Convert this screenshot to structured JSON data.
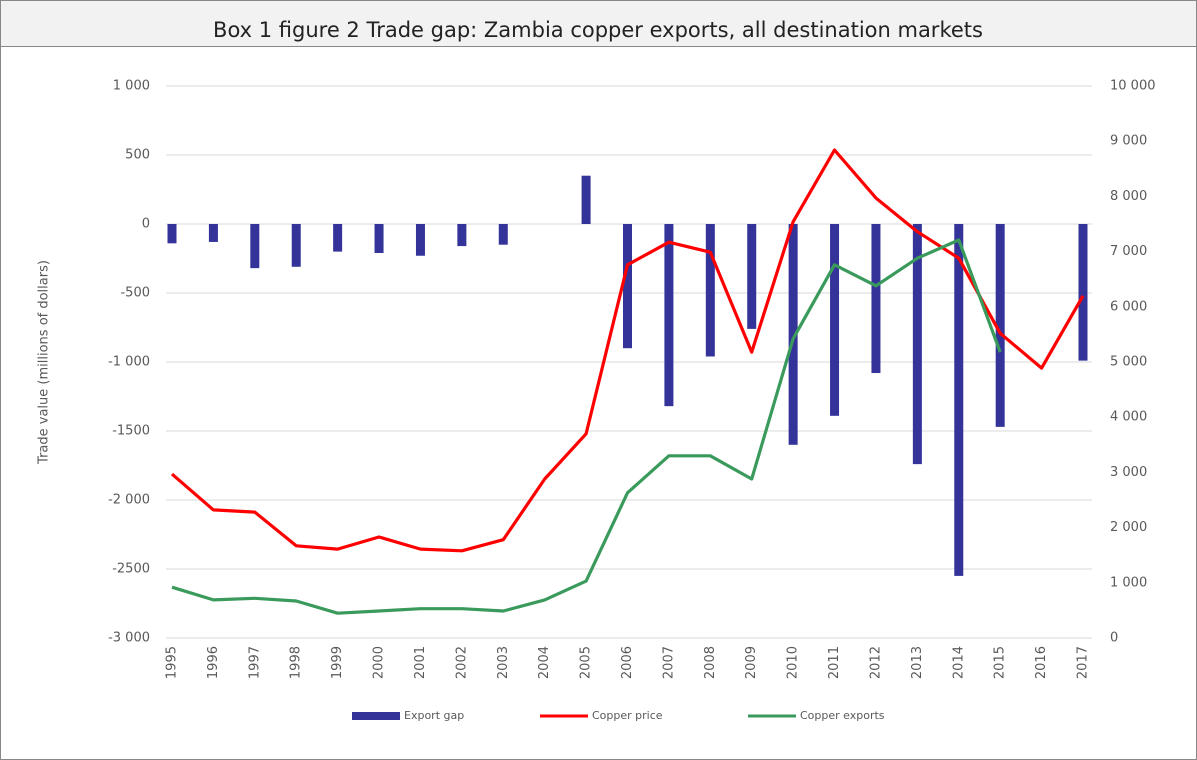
{
  "chart_data": {
    "type": "bar-line",
    "title": "Box 1 figure 2 Trade gap: Zambia copper exports, all destination markets",
    "y_label": "Trade value  (millions of dollars)",
    "categories": [
      "1995",
      "1996",
      "1997",
      "1998",
      "1999",
      "2000",
      "2001",
      "2002",
      "2003",
      "2004",
      "2005",
      "2006",
      "2007",
      "2008",
      "2009",
      "2010",
      "2011",
      "2012",
      "2013",
      "2014",
      "2015",
      "2016",
      "2017"
    ],
    "series": [
      {
        "name": "Export gap",
        "type": "bar",
        "color": "#333399",
        "values": [
          -140,
          -130,
          -320,
          -310,
          -200,
          -210,
          -230,
          -160,
          -150,
          null,
          350,
          -900,
          -1320,
          -960,
          -760,
          -1600,
          -1390,
          -1080,
          -1740,
          -2550,
          -1470,
          null,
          -990
        ]
      },
      {
        "name": "Copper price",
        "type": "line",
        "axis": "y2",
        "color": "#ff0000",
        "values": [
          2970,
          2320,
          2280,
          1670,
          1610,
          1830,
          1610,
          1580,
          1780,
          2880,
          3700,
          6760,
          7170,
          6990,
          5180,
          7540,
          8840,
          7970,
          7360,
          6880,
          5520,
          4890,
          6200
        ]
      },
      {
        "name": "Copper exports",
        "type": "line",
        "axis": "y2",
        "color": "#3a9a5c",
        "values": [
          920,
          690,
          720,
          670,
          450,
          490,
          530,
          530,
          490,
          690,
          1030,
          2630,
          3300,
          3300,
          2880,
          5420,
          6760,
          6380,
          6880,
          7210,
          5180,
          null,
          null
        ]
      }
    ],
    "ylim": [
      -3000,
      1000
    ],
    "yticks": [
      {
        "value": -3000,
        "label": "-3 000"
      },
      -2500,
      {
        "value": -2000,
        "label": "-2 000"
      },
      -1500,
      {
        "value": -1000,
        "label": "-1 000"
      },
      -500,
      0,
      500,
      {
        "value": 1000,
        "label": "1 000"
      }
    ],
    "y2lim": [
      0,
      10000
    ],
    "y2ticks": [
      0,
      {
        "value": 1000,
        "label": "1 000"
      },
      {
        "value": 2000,
        "label": "2 000"
      },
      {
        "value": 3000,
        "label": "3 000"
      },
      {
        "value": 4000,
        "label": "4 000"
      },
      {
        "value": 5000,
        "label": "5 000"
      },
      {
        "value": 6000,
        "label": "6 000"
      },
      {
        "value": 7000,
        "label": "7 000"
      },
      {
        "value": 8000,
        "label": "8 000"
      },
      {
        "value": 9000,
        "label": "9 000"
      },
      {
        "value": 10000,
        "label": "10 000"
      }
    ],
    "grid": true,
    "legend": "bottom"
  }
}
